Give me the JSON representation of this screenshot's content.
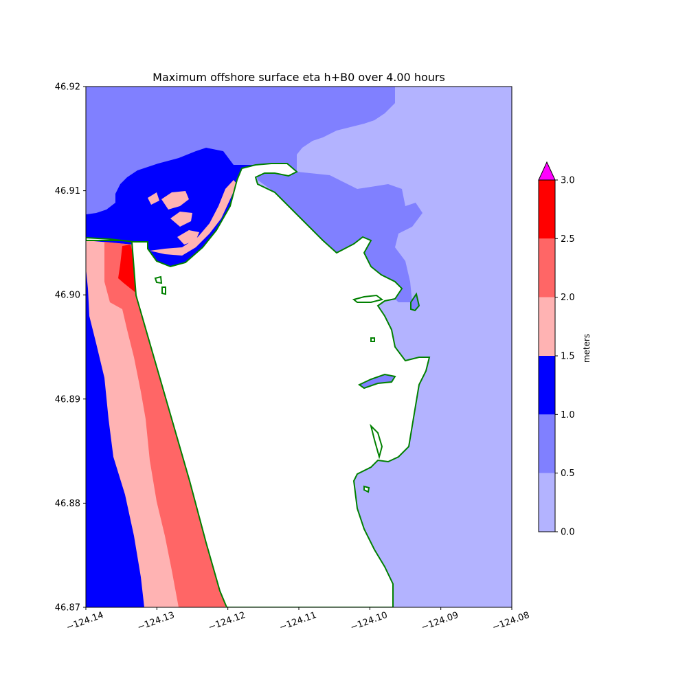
{
  "chart_data": {
    "type": "heatmap",
    "title": "Maximum offshore surface eta h+B0 over 4.00 hours",
    "xlim": [
      -124.14,
      -124.08
    ],
    "ylim": [
      46.87,
      46.92
    ],
    "x_ticks": [
      -124.14,
      -124.13,
      -124.12,
      -124.11,
      -124.1,
      -124.09,
      -124.08
    ],
    "x_tick_labels": [
      "−124.14",
      "−124.13",
      "−124.12",
      "−124.11",
      "−124.10",
      "−124.09",
      "−124.08"
    ],
    "y_ticks": [
      46.87,
      46.88,
      46.89,
      46.9,
      46.91,
      46.92
    ],
    "y_tick_labels": [
      "46.87",
      "46.88",
      "46.89",
      "46.90",
      "46.91",
      "46.92"
    ],
    "colorbar": {
      "label": "meters",
      "levels": [
        0.0,
        0.5,
        1.0,
        1.5,
        2.0,
        2.5,
        3.0
      ],
      "tick_labels": [
        "0.0",
        "0.5",
        "1.0",
        "1.5",
        "2.0",
        "2.5",
        "3.0"
      ],
      "colors": [
        "#b3b3ff",
        "#8080ff",
        "#0000ff",
        "#ffb3b3",
        "#ff6666",
        "#ff0000"
      ],
      "extend_color": "#ff00ff",
      "extend": "max"
    },
    "land_color": "#ffffff",
    "shoreline_color": "#008000",
    "grid": false
  }
}
